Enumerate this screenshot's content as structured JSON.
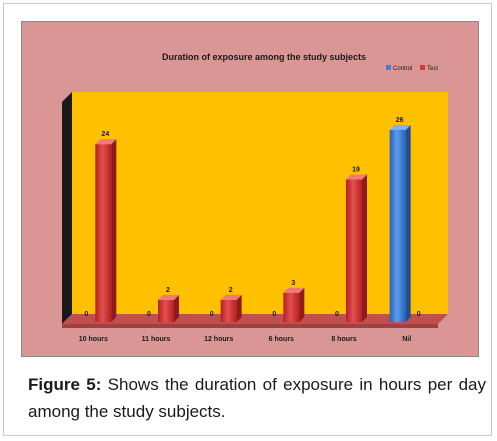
{
  "chart_data": {
    "type": "bar",
    "title": "Duration of exposure among the study subjects",
    "categories": [
      "10 hours",
      "11 hours",
      "12 hours",
      "6 hours",
      "8 hours",
      "Nil"
    ],
    "series": [
      {
        "name": "Control",
        "values": [
          0,
          0,
          0,
          0,
          0,
          26
        ],
        "color": "#3f7fd9"
      },
      {
        "name": "Test",
        "values": [
          24,
          2,
          2,
          3,
          19,
          0
        ],
        "color": "#d33a3a"
      }
    ],
    "ylim": [
      0,
      26
    ],
    "grid": false,
    "legend_position": "top-right",
    "colors": {
      "background": "#d99694",
      "plot_wall": "#ffc000",
      "floor": "#c0504d"
    }
  },
  "caption": {
    "label": "Figure 5:",
    "text": " Shows the duration of exposure in hours per day among the study subjects."
  }
}
